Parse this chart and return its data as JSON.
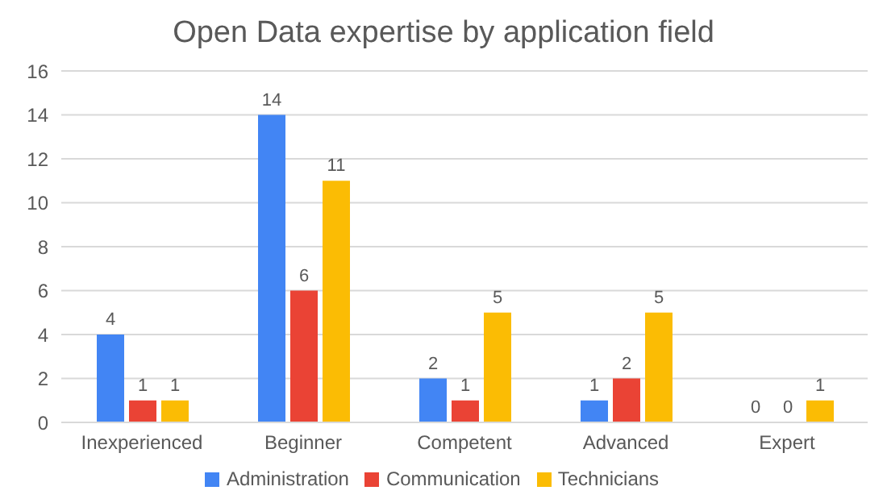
{
  "chart_data": {
    "type": "bar",
    "title": "Open Data expertise by application field",
    "categories": [
      "Inexperienced",
      "Beginner",
      "Competent",
      "Advanced",
      "Expert"
    ],
    "series": [
      {
        "name": "Administration",
        "color": "#4285f4",
        "values": [
          4,
          14,
          2,
          1,
          0
        ]
      },
      {
        "name": "Communication",
        "color": "#ea4335",
        "values": [
          1,
          6,
          1,
          2,
          0
        ]
      },
      {
        "name": "Technicians",
        "color": "#fbbc04",
        "values": [
          1,
          11,
          5,
          5,
          1
        ]
      }
    ],
    "ylim": [
      0,
      16
    ],
    "yticks": [
      0,
      2,
      4,
      6,
      8,
      10,
      12,
      14,
      16
    ],
    "grid": "y",
    "legend": "bottom",
    "data_labels": true
  }
}
